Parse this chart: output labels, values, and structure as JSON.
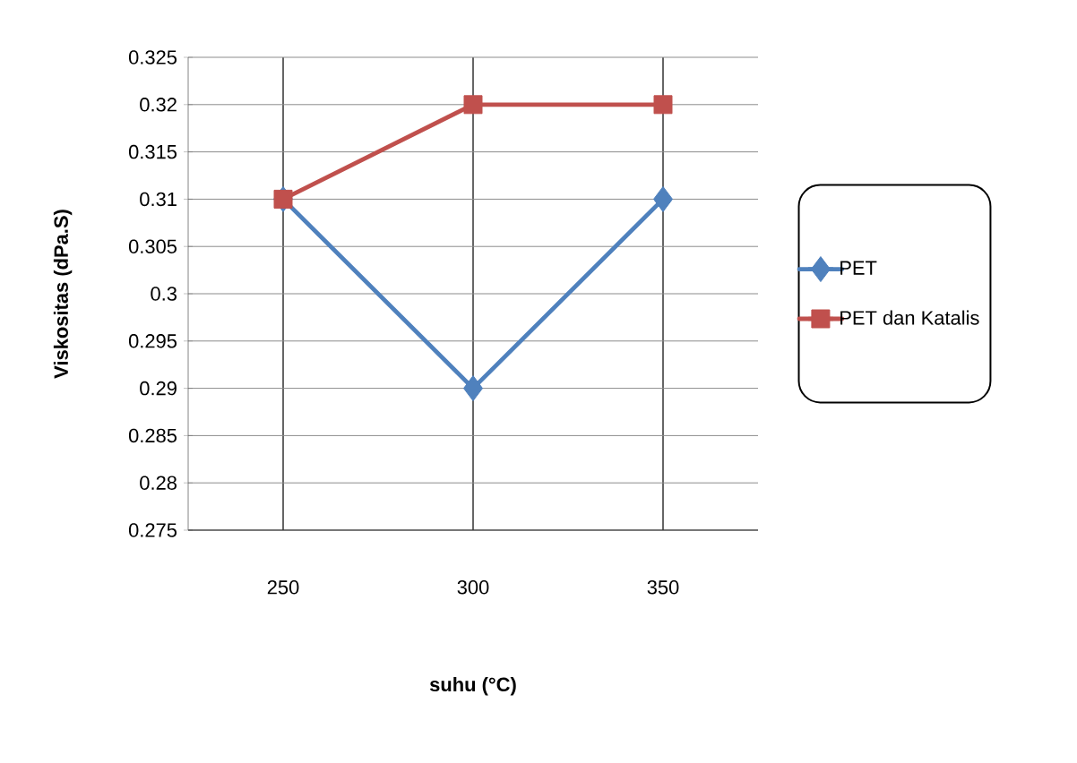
{
  "chart_data": {
    "type": "line",
    "xlabel": "suhu (°C)",
    "ylabel": "Viskositas (dPa.S)",
    "categories": [
      "250",
      "300",
      "350"
    ],
    "series": [
      {
        "name": "PET",
        "color": "#4f81bd",
        "marker": "diamond",
        "values": [
          0.31,
          0.29,
          0.31
        ]
      },
      {
        "name": "PET dan Katalis",
        "color": "#c0504d",
        "marker": "square",
        "values": [
          0.31,
          0.32,
          0.32
        ]
      }
    ],
    "ylim": [
      0.275,
      0.325
    ],
    "yticks": [
      0.275,
      0.28,
      0.285,
      0.29,
      0.295,
      0.3,
      0.305,
      0.31,
      0.315,
      0.32,
      0.325
    ],
    "grid": true,
    "legend": "right"
  }
}
